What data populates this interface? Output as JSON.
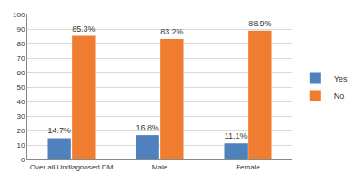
{
  "chart_data": {
    "type": "bar",
    "categories": [
      "Over all Undiagnosed DM",
      "Male",
      "Female"
    ],
    "series": [
      {
        "name": "Yes",
        "color": "#4f81bd",
        "values": [
          14.7,
          16.8,
          11.1
        ],
        "value_labels": [
          "14.7%",
          "16.8%",
          "11.1%"
        ]
      },
      {
        "name": "No",
        "color": "#f07c30",
        "values": [
          85.3,
          83.2,
          88.9
        ],
        "value_labels": [
          "85.3%",
          "83.2%",
          "88.9%"
        ]
      }
    ],
    "ylim": [
      0,
      100
    ],
    "yticks": [
      0,
      10,
      20,
      30,
      40,
      50,
      60,
      70,
      80,
      90,
      100
    ],
    "grid": true,
    "legend": "right",
    "data_labels": true
  }
}
